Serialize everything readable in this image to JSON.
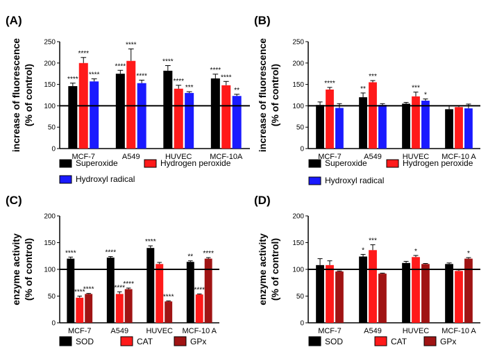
{
  "chart_data": [
    {
      "type": "bar",
      "panel_label": "(A)",
      "ylabel_lines": [
        "increase of fluorescence",
        "(% of control)"
      ],
      "ylim": [
        0,
        250
      ],
      "yticks": [
        0,
        50,
        100,
        150,
        200,
        250
      ],
      "reference_line": 100,
      "categories": [
        "MCF-7",
        "A549",
        "HUVEC",
        "MCF-10A"
      ],
      "series": [
        {
          "name": "Superoxide",
          "color": "#000000",
          "values": [
            146,
            175,
            182,
            164
          ],
          "errors": [
            7,
            8,
            12,
            10
          ],
          "annotations": [
            "****",
            "****",
            "****",
            "****"
          ]
        },
        {
          "name": "Hydrogen peroxide",
          "color": "#ff1a1a",
          "values": [
            200,
            205,
            140,
            148
          ],
          "errors": [
            13,
            28,
            8,
            9
          ],
          "annotations": [
            "****",
            "****",
            "****",
            "****"
          ]
        },
        {
          "name": "Hydroxyl radical",
          "color": "#1a1aff",
          "values": [
            157,
            153,
            130,
            123
          ],
          "errors": [
            6,
            7,
            3,
            4
          ],
          "annotations": [
            "****",
            "****",
            "***",
            "**"
          ]
        }
      ],
      "legend": [
        "Superoxide",
        "Hydrogen peroxide",
        "Hydroxyl radical"
      ]
    },
    {
      "type": "bar",
      "panel_label": "(B)",
      "ylabel_lines": [
        "increase of fluorescence",
        "(% of control)"
      ],
      "ylim": [
        0,
        250
      ],
      "yticks": [
        0,
        50,
        100,
        150,
        200,
        250
      ],
      "reference_line": 100,
      "categories": [
        "MCF-7",
        "A549",
        "HUVEC",
        "MCF-10 A"
      ],
      "series": [
        {
          "name": "Superoxide",
          "color": "#000000",
          "values": [
            102,
            120,
            105,
            92
          ],
          "errors": [
            7,
            10,
            3,
            8
          ],
          "annotations": [
            "",
            "**",
            "",
            ""
          ]
        },
        {
          "name": "Hydrogen peroxide",
          "color": "#ff1a1a",
          "values": [
            138,
            155,
            122,
            97
          ],
          "errors": [
            5,
            4,
            10,
            3
          ],
          "annotations": [
            "****",
            "***",
            "***",
            ""
          ]
        },
        {
          "name": "Hydroxyl radical",
          "color": "#1a1aff",
          "values": [
            95,
            102,
            112,
            94
          ],
          "errors": [
            10,
            3,
            4,
            10
          ],
          "annotations": [
            "",
            "",
            "*",
            ""
          ]
        }
      ],
      "legend": [
        "Superoxide",
        "Hydrogen peroxide",
        "Hydroxyl radical"
      ]
    },
    {
      "type": "bar",
      "panel_label": "(C)",
      "ylabel_lines": [
        "enzyme activity",
        "(% of control)"
      ],
      "ylim": [
        0,
        200
      ],
      "yticks": [
        0,
        50,
        100,
        150,
        200
      ],
      "reference_line": 100,
      "categories": [
        "MCF-7",
        "A549",
        "HUVEC",
        "MCF-10 A"
      ],
      "series": [
        {
          "name": "SOD",
          "color": "#000000",
          "values": [
            120,
            122,
            140,
            114
          ],
          "errors": [
            3,
            2,
            4,
            2
          ],
          "annotations": [
            "****",
            "****",
            "****",
            "**"
          ]
        },
        {
          "name": "CAT",
          "color": "#ff1a1a",
          "values": [
            47,
            54,
            110,
            53
          ],
          "errors": [
            3,
            4,
            3,
            1
          ],
          "annotations": [
            "****",
            "****",
            "",
            "****"
          ]
        },
        {
          "name": "GPx",
          "color": "#a01414",
          "values": [
            54,
            63,
            40,
            120
          ],
          "errors": [
            1,
            2,
            1,
            2
          ],
          "annotations": [
            "****",
            "****",
            "****",
            "****"
          ]
        }
      ],
      "legend": [
        "SOD",
        "CAT",
        "GPx"
      ]
    },
    {
      "type": "bar",
      "panel_label": "(D)",
      "ylabel_lines": [
        "enzyme activity",
        "(% of control)"
      ],
      "ylim": [
        0,
        200
      ],
      "yticks": [
        0,
        50,
        100,
        150,
        200
      ],
      "reference_line": 100,
      "categories": [
        "MCF-7",
        "A549",
        "HUVEC",
        "MCF-10 A"
      ],
      "series": [
        {
          "name": "SOD",
          "color": "#000000",
          "values": [
            108,
            124,
            112,
            110
          ],
          "errors": [
            12,
            4,
            3,
            2
          ],
          "annotations": [
            "",
            "*",
            "",
            ""
          ]
        },
        {
          "name": "CAT",
          "color": "#ff1a1a",
          "values": [
            108,
            136,
            123,
            97
          ],
          "errors": [
            8,
            10,
            3,
            2
          ],
          "annotations": [
            "",
            "***",
            "*",
            ""
          ]
        },
        {
          "name": "GPx",
          "color": "#a01414",
          "values": [
            96,
            92,
            110,
            120
          ],
          "errors": [
            1,
            1,
            1,
            2
          ],
          "annotations": [
            "",
            "",
            "",
            "*"
          ]
        }
      ],
      "legend": [
        "SOD",
        "CAT",
        "GPx"
      ]
    }
  ]
}
